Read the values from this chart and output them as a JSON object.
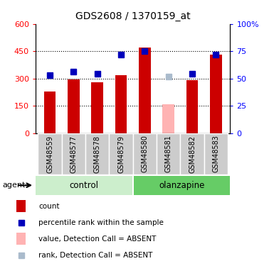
{
  "title": "GDS2608 / 1370159_at",
  "samples": [
    "GSM48559",
    "GSM48577",
    "GSM48578",
    "GSM48579",
    "GSM48580",
    "GSM48581",
    "GSM48582",
    "GSM48583"
  ],
  "bar_values": [
    230,
    295,
    280,
    320,
    470,
    160,
    290,
    430
  ],
  "bar_colors": [
    "#cc0000",
    "#cc0000",
    "#cc0000",
    "#cc0000",
    "#cc0000",
    "#ffb3b3",
    "#cc0000",
    "#cc0000"
  ],
  "rank_values": [
    53,
    56,
    54,
    72,
    75,
    52,
    54,
    72
  ],
  "rank_colors": [
    "#0000bb",
    "#0000bb",
    "#0000bb",
    "#0000bb",
    "#0000bb",
    "#aabbcc",
    "#0000bb",
    "#0000bb"
  ],
  "ylim_left": [
    0,
    600
  ],
  "ylim_right": [
    0,
    100
  ],
  "yticks_left": [
    0,
    150,
    300,
    450,
    600
  ],
  "yticks_right": [
    0,
    25,
    50,
    75,
    100
  ],
  "ytick_labels_left": [
    "0",
    "150",
    "300",
    "450",
    "600"
  ],
  "ytick_labels_right": [
    "0",
    "25",
    "50",
    "75",
    "100%"
  ],
  "bar_width": 0.5,
  "marker_size": 6,
  "bg_color_control": "#cceecc",
  "bg_color_olanzapine": "#66cc66",
  "bg_color_samples": "#cccccc",
  "legend_items": [
    {
      "label": "count",
      "color": "#cc0000",
      "type": "rect"
    },
    {
      "label": "percentile rank within the sample",
      "color": "#0000bb",
      "type": "square"
    },
    {
      "label": "value, Detection Call = ABSENT",
      "color": "#ffb3b3",
      "type": "rect"
    },
    {
      "label": "rank, Detection Call = ABSENT",
      "color": "#aabbcc",
      "type": "square"
    }
  ]
}
